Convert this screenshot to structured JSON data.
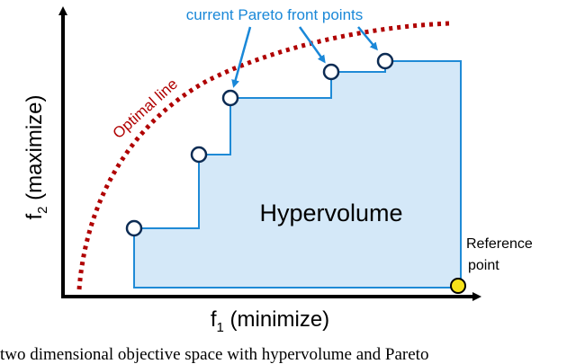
{
  "diagram": {
    "annotation_pareto": "current Pareto front points",
    "optimal_line_label": "Optimal line",
    "hypervolume_label": "Hypervolume",
    "reference_label_line1": "Reference",
    "reference_label_line2": "point",
    "x_axis": {
      "base": "f",
      "sub": "1",
      "suffix": " (minimize)"
    },
    "y_axis": {
      "base": "f",
      "sub": "2",
      "suffix": " (maximize)"
    },
    "caption": "two dimensional objective space with hypervolume and Pareto"
  },
  "colors": {
    "hypervolume_fill": "#d4e8f8",
    "hypervolume_edge": "#1f8ad6",
    "annotation": "#1a88d8",
    "optimal_line": "#b00000",
    "point_edge": "#0d2c54",
    "reference_point": "#f6e21a",
    "axis": "#000000"
  }
}
